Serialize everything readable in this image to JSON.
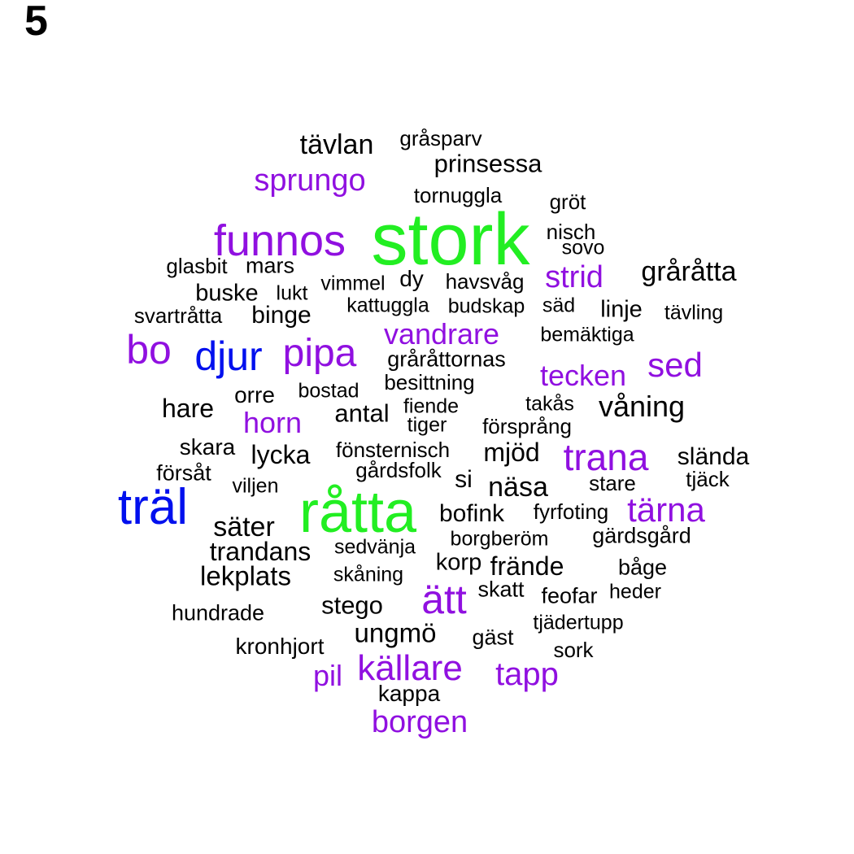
{
  "panel_label": "5",
  "colors": {
    "black": "#000000",
    "purple": "#9010e0",
    "blue": "#0010ee",
    "green": "#22ee22"
  },
  "words": [
    {
      "text": "tävlan",
      "color": "black"
    },
    {
      "text": "gråsparv",
      "color": "black"
    },
    {
      "text": "prinsessa",
      "color": "black"
    },
    {
      "text": "sprungo",
      "color": "purple"
    },
    {
      "text": "tornuggla",
      "color": "black"
    },
    {
      "text": "gröt",
      "color": "black"
    },
    {
      "text": "stork",
      "color": "green"
    },
    {
      "text": "funnos",
      "color": "purple"
    },
    {
      "text": "nisch",
      "color": "black"
    },
    {
      "text": "sovo",
      "color": "black"
    },
    {
      "text": "glasbit",
      "color": "black"
    },
    {
      "text": "mars",
      "color": "black"
    },
    {
      "text": "strid",
      "color": "purple"
    },
    {
      "text": "gråråtta",
      "color": "black"
    },
    {
      "text": "dy",
      "color": "black"
    },
    {
      "text": "vimmel",
      "color": "black"
    },
    {
      "text": "havsvåg",
      "color": "black"
    },
    {
      "text": "buske",
      "color": "black"
    },
    {
      "text": "lukt",
      "color": "black"
    },
    {
      "text": "kattuggla",
      "color": "black"
    },
    {
      "text": "budskap",
      "color": "black"
    },
    {
      "text": "säd",
      "color": "black"
    },
    {
      "text": "linje",
      "color": "black"
    },
    {
      "text": "tävling",
      "color": "black"
    },
    {
      "text": "svartråtta",
      "color": "black"
    },
    {
      "text": "binge",
      "color": "black"
    },
    {
      "text": "vandrare",
      "color": "purple"
    },
    {
      "text": "bemäktiga",
      "color": "black"
    },
    {
      "text": "bo",
      "color": "purple"
    },
    {
      "text": "djur",
      "color": "blue"
    },
    {
      "text": "pipa",
      "color": "purple"
    },
    {
      "text": "gråråttornas",
      "color": "black"
    },
    {
      "text": "sed",
      "color": "purple"
    },
    {
      "text": "tecken",
      "color": "purple"
    },
    {
      "text": "besittning",
      "color": "black"
    },
    {
      "text": "bostad",
      "color": "black"
    },
    {
      "text": "orre",
      "color": "black"
    },
    {
      "text": "hare",
      "color": "black"
    },
    {
      "text": "takås",
      "color": "black"
    },
    {
      "text": "våning",
      "color": "black"
    },
    {
      "text": "fiende",
      "color": "black"
    },
    {
      "text": "antal",
      "color": "black"
    },
    {
      "text": "horn",
      "color": "purple"
    },
    {
      "text": "tiger",
      "color": "black"
    },
    {
      "text": "försprång",
      "color": "black"
    },
    {
      "text": "skara",
      "color": "black"
    },
    {
      "text": "lycka",
      "color": "black"
    },
    {
      "text": "fönsternisch",
      "color": "black"
    },
    {
      "text": "mjöd",
      "color": "black"
    },
    {
      "text": "trana",
      "color": "purple"
    },
    {
      "text": "slända",
      "color": "black"
    },
    {
      "text": "försåt",
      "color": "black"
    },
    {
      "text": "gårdsfolk",
      "color": "black"
    },
    {
      "text": "si",
      "color": "black"
    },
    {
      "text": "tjäck",
      "color": "black"
    },
    {
      "text": "viljen",
      "color": "black"
    },
    {
      "text": "näsa",
      "color": "black"
    },
    {
      "text": "stare",
      "color": "black"
    },
    {
      "text": "träl",
      "color": "blue"
    },
    {
      "text": "råtta",
      "color": "green"
    },
    {
      "text": "bofink",
      "color": "black"
    },
    {
      "text": "fyrfoting",
      "color": "black"
    },
    {
      "text": "tärna",
      "color": "purple"
    },
    {
      "text": "säter",
      "color": "black"
    },
    {
      "text": "gärdsgård",
      "color": "black"
    },
    {
      "text": "borgberöm",
      "color": "black"
    },
    {
      "text": "sedvänja",
      "color": "black"
    },
    {
      "text": "trandans",
      "color": "black"
    },
    {
      "text": "korp",
      "color": "black"
    },
    {
      "text": "frände",
      "color": "black"
    },
    {
      "text": "båge",
      "color": "black"
    },
    {
      "text": "lekplats",
      "color": "black"
    },
    {
      "text": "skåning",
      "color": "black"
    },
    {
      "text": "skatt",
      "color": "black"
    },
    {
      "text": "heder",
      "color": "black"
    },
    {
      "text": "ätt",
      "color": "purple"
    },
    {
      "text": "feofar",
      "color": "black"
    },
    {
      "text": "hundrade",
      "color": "black"
    },
    {
      "text": "stego",
      "color": "black"
    },
    {
      "text": "tjädertupp",
      "color": "black"
    },
    {
      "text": "ungmö",
      "color": "black"
    },
    {
      "text": "gäst",
      "color": "black"
    },
    {
      "text": "kronhjort",
      "color": "black"
    },
    {
      "text": "sork",
      "color": "black"
    },
    {
      "text": "pil",
      "color": "purple"
    },
    {
      "text": "källare",
      "color": "purple"
    },
    {
      "text": "tapp",
      "color": "purple"
    },
    {
      "text": "kappa",
      "color": "black"
    },
    {
      "text": "borgen",
      "color": "purple"
    }
  ]
}
